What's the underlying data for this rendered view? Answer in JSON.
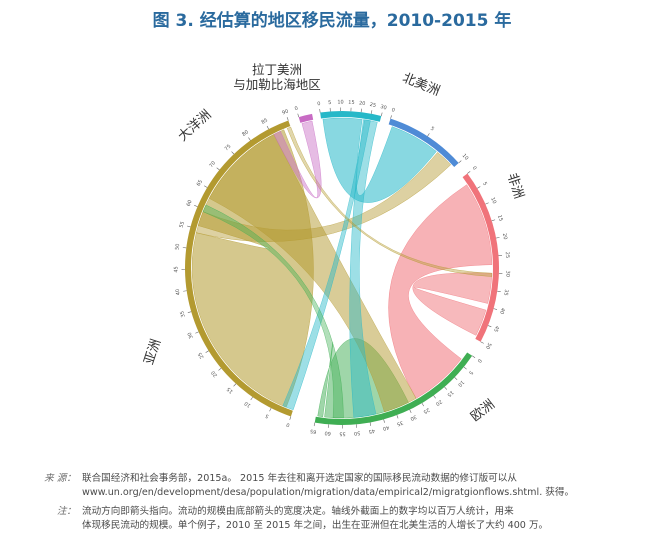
{
  "title": "图 3. 经估算的地区移民流量，2010-2015 年",
  "chart_data": {
    "type": "chord",
    "title": "图 3. 经估算的地区移民流量，2010-2015 年",
    "regions": [
      {
        "name": "北美洲",
        "color": "#4f8bd6",
        "ticks": [
          "0",
          "5",
          "10"
        ]
      },
      {
        "name": "非洲",
        "color": "#f0737a",
        "ticks": [
          "0",
          "5",
          "10",
          "15",
          "20",
          "25",
          "30",
          "35",
          "40",
          "45",
          "50"
        ]
      },
      {
        "name": "欧洲",
        "color": "#3fae53",
        "ticks": [
          "0",
          "5",
          "10",
          "15",
          "20",
          "25",
          "30",
          "35",
          "40",
          "45",
          "50",
          "55",
          "60",
          "65"
        ]
      },
      {
        "name": "亚洲",
        "color": "#b39a30",
        "ticks": [
          "0",
          "5",
          "10",
          "15",
          "20",
          "25",
          "30",
          "35",
          "40",
          "45",
          "50",
          "55",
          "60",
          "65",
          "70",
          "75",
          "80",
          "85",
          "90"
        ]
      },
      {
        "name": "大洋洲",
        "color": "#c86bc4",
        "ticks": [
          "0"
        ]
      },
      {
        "name_lines": [
          "拉丁美洲",
          "与加勒比海地区"
        ],
        "color": "#26b8c8",
        "ticks": [
          "0",
          "5",
          "10",
          "15",
          "20",
          "25",
          "30"
        ]
      }
    ]
  },
  "notes": {
    "source_key": "来 源：",
    "source_line1": "联合国经济和社会事务部，2015a。 2015 年去往和离开选定国家的国际移民流动数据的修订版可以从",
    "source_line2": "www.un.org/en/development/desa/population/migration/data/empirical2/migratgionflows.shtml. 获得。",
    "note_key": "注：",
    "note_line1": "流动方向即箭头指向。流动的规模由底部箭头的宽度决定。轴线外截面上的数字均以百万人统计，用来",
    "note_line2": "体现移民流动的规模。单个例子，2010 至 2015 年之间，出生在亚洲但在北美生活的人增长了大约 400 万。"
  }
}
